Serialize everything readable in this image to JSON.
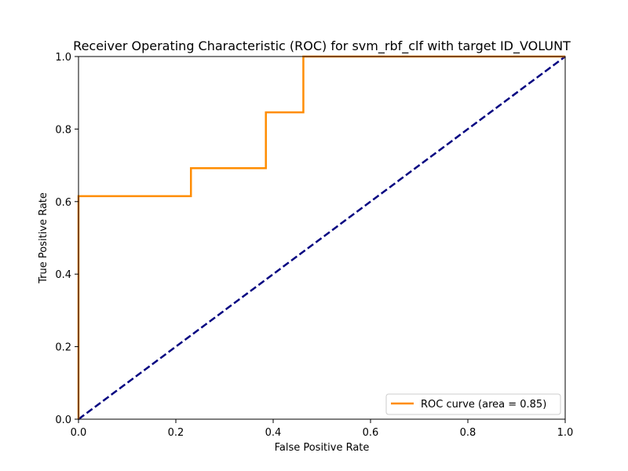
{
  "chart_data": {
    "type": "line",
    "title": "Receiver Operating Characteristic (ROC) for svm_rbf_clf with target ID_VOLUNT",
    "xlabel": "False Positive Rate",
    "ylabel": "True Positive Rate",
    "xlim": [
      0.0,
      1.0
    ],
    "ylim": [
      0.0,
      1.0
    ],
    "xticks": [
      0.0,
      0.2,
      0.4,
      0.6,
      0.8,
      1.0
    ],
    "xtick_labels": [
      "0.0",
      "0.2",
      "0.4",
      "0.6",
      "0.8",
      "1.0"
    ],
    "yticks": [
      0.0,
      0.2,
      0.4,
      0.6,
      0.8,
      1.0
    ],
    "ytick_labels": [
      "0.0",
      "0.2",
      "0.4",
      "0.6",
      "0.8",
      "1.0"
    ],
    "grid": false,
    "legend_position": "lower-right",
    "series": [
      {
        "name": "ROC curve (area = 0.85)",
        "color": "#ff8c00",
        "style": "solid",
        "x": [
          0.0,
          0.0,
          0.0,
          0.231,
          0.231,
          0.385,
          0.385,
          0.462,
          0.462,
          1.0
        ],
        "y": [
          0.0,
          0.077,
          0.615,
          0.615,
          0.692,
          0.692,
          0.846,
          0.846,
          1.0,
          1.0
        ]
      },
      {
        "color": "#000080",
        "style": "dashed",
        "x": [
          0.0,
          1.0
        ],
        "y": [
          0.0,
          1.0
        ]
      }
    ]
  }
}
